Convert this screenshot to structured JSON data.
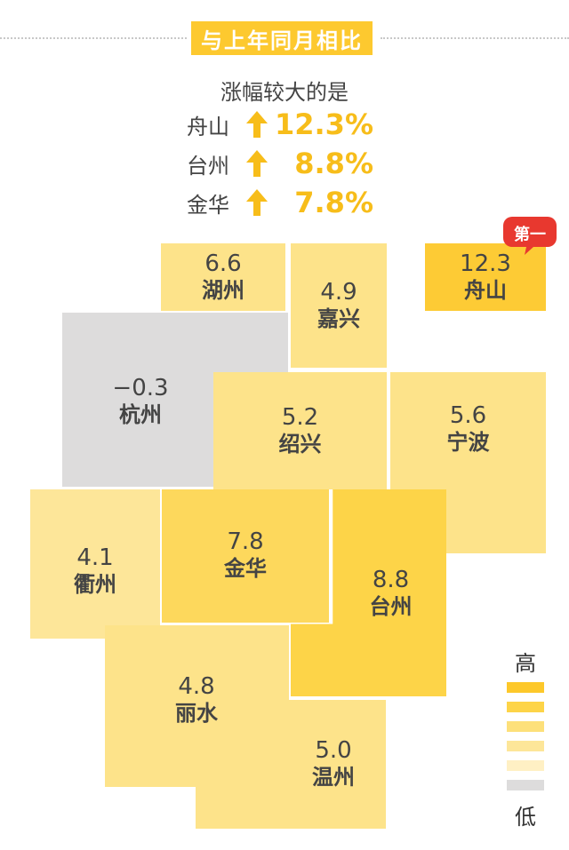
{
  "header": {
    "title": "与上年同月相比"
  },
  "summary": {
    "subtitle": "涨幅较大的是",
    "top": [
      {
        "city": "舟山",
        "value": "12.3%"
      },
      {
        "city": "台州",
        "value": "8.8%"
      },
      {
        "city": "金华",
        "value": "7.8%"
      }
    ],
    "arrow_icon": "up-arrow-icon",
    "accent_color": "#f7bd1a"
  },
  "chart_data": {
    "type": "tile-map",
    "title": "",
    "unit": "%",
    "tiles": [
      {
        "name": "湖州",
        "value": "6.6",
        "color": "#fde38a"
      },
      {
        "name": "嘉兴",
        "value": "4.9",
        "color": "#fde38a"
      },
      {
        "name": "舟山",
        "value": "12.3",
        "color": "#fdcb35"
      },
      {
        "name": "杭州",
        "value": "−0.3",
        "color": "#dddcdc"
      },
      {
        "name": "绍兴",
        "value": "5.2",
        "color": "#fde38a"
      },
      {
        "name": "宁波",
        "value": "5.6",
        "color": "#fde38a"
      },
      {
        "name": "衢州",
        "value": "4.1",
        "color": "#fde699"
      },
      {
        "name": "金华",
        "value": "7.8",
        "color": "#fdd85c"
      },
      {
        "name": "台州",
        "value": "8.8",
        "color": "#fdd448"
      },
      {
        "name": "丽水",
        "value": "4.8",
        "color": "#fde38a"
      },
      {
        "name": "温州",
        "value": "5.0",
        "color": "#fde38a"
      }
    ],
    "first_badge": "第一",
    "legend": {
      "high_label": "高",
      "low_label": "低",
      "scale_colors": [
        "#fdc82a",
        "#fdd448",
        "#fde07a",
        "#fde699",
        "#fff0c4",
        "#dddcdc"
      ]
    }
  }
}
